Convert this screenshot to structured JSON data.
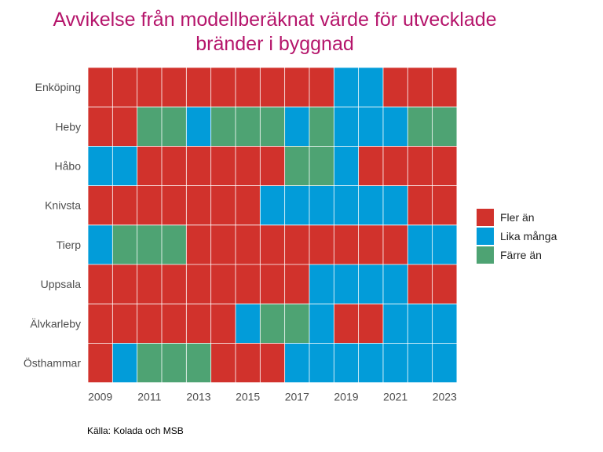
{
  "title": {
    "line1": "Avvikelse från modellberäknat värde för utvecklade",
    "line2": "bränder i byggnad"
  },
  "source": "Källa: Kolada och MSB",
  "colors": {
    "title": "#b5156b",
    "Fler än": "#d1322c",
    "Lika många": "#029cd9",
    "Färre än": "#4ea373"
  },
  "legend": [
    {
      "label": "Fler än",
      "key": "F"
    },
    {
      "label": "Lika många",
      "key": "L"
    },
    {
      "label": "Färre än",
      "key": "R"
    }
  ],
  "chart_data": {
    "type": "heatmap",
    "title": "Avvikelse från modellberäknat värde för utvecklade bränder i byggnad",
    "xlabel": "",
    "ylabel": "",
    "years": [
      2009,
      2010,
      2011,
      2012,
      2013,
      2014,
      2015,
      2016,
      2017,
      2018,
      2019,
      2020,
      2021,
      2022,
      2023
    ],
    "x_tick_labels": [
      "2009",
      "2011",
      "2013",
      "2015",
      "2017",
      "2019",
      "2021",
      "2023"
    ],
    "value_key": {
      "F": "Fler än",
      "L": "Lika många",
      "R": "Färre än"
    },
    "rows": [
      {
        "name": "Enköping",
        "values": [
          "F",
          "F",
          "F",
          "F",
          "F",
          "F",
          "F",
          "F",
          "F",
          "F",
          "L",
          "L",
          "F",
          "F",
          "F"
        ]
      },
      {
        "name": "Heby",
        "values": [
          "F",
          "F",
          "R",
          "R",
          "L",
          "R",
          "R",
          "R",
          "L",
          "R",
          "L",
          "L",
          "L",
          "R",
          "R"
        ]
      },
      {
        "name": "Håbo",
        "values": [
          "L",
          "L",
          "F",
          "F",
          "F",
          "F",
          "F",
          "F",
          "R",
          "R",
          "L",
          "F",
          "F",
          "F",
          "F"
        ]
      },
      {
        "name": "Knivsta",
        "values": [
          "F",
          "F",
          "F",
          "F",
          "F",
          "F",
          "F",
          "L",
          "L",
          "L",
          "L",
          "L",
          "L",
          "F",
          "F"
        ]
      },
      {
        "name": "Tierp",
        "values": [
          "L",
          "R",
          "R",
          "R",
          "F",
          "F",
          "F",
          "F",
          "F",
          "F",
          "F",
          "F",
          "F",
          "L",
          "L"
        ]
      },
      {
        "name": "Uppsala",
        "values": [
          "F",
          "F",
          "F",
          "F",
          "F",
          "F",
          "F",
          "F",
          "F",
          "L",
          "L",
          "L",
          "L",
          "F",
          "F"
        ]
      },
      {
        "name": "Älvkarleby",
        "values": [
          "F",
          "F",
          "F",
          "F",
          "F",
          "F",
          "L",
          "R",
          "R",
          "L",
          "F",
          "F",
          "L",
          "L",
          "L"
        ]
      },
      {
        "name": "Östhammar",
        "values": [
          "F",
          "L",
          "R",
          "R",
          "R",
          "F",
          "F",
          "F",
          "L",
          "L",
          "L",
          "L",
          "L",
          "L",
          "L"
        ]
      }
    ],
    "legend_position": "right"
  }
}
